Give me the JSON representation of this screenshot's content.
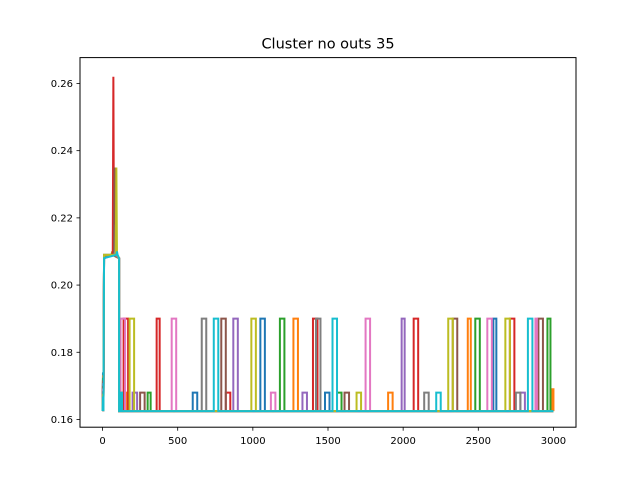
{
  "chart_data": {
    "type": "line",
    "title": "Cluster no outs 35",
    "xlabel": "",
    "ylabel": "",
    "xlim": [
      -150,
      3150
    ],
    "ylim": [
      0.1577,
      0.2677
    ],
    "x_ticks": [
      0,
      500,
      1000,
      1500,
      2000,
      2500,
      3000
    ],
    "x_tick_labels": [
      "0",
      "500",
      "1000",
      "1500",
      "2000",
      "2500",
      "3000"
    ],
    "y_ticks": [
      0.16,
      0.18,
      0.2,
      0.22,
      0.24,
      0.26
    ],
    "y_tick_labels": [
      "0.16",
      "0.18",
      "0.20",
      "0.22",
      "0.24",
      "0.26"
    ],
    "grid": false,
    "legend": "none",
    "baseline": 0.1625,
    "warmup": {
      "start": 0,
      "rise": 10,
      "end": 110,
      "plateau": 0.208
    },
    "series": [
      {
        "color": "#1f77b4",
        "spike_peak": 0.209,
        "spikes": [
          [
            600,
            630,
            0.168
          ],
          [
            1050,
            1080,
            0.19
          ],
          [
            1480,
            1510,
            0.168
          ],
          [
            2600,
            2620,
            0.19
          ]
        ]
      },
      {
        "color": "#ff7f0e",
        "spike_peak": 0.21,
        "spikes": [
          [
            130,
            160,
            0.168
          ],
          [
            1270,
            1300,
            0.19
          ],
          [
            1900,
            1930,
            0.168
          ],
          [
            2430,
            2450,
            0.19
          ],
          [
            2990,
            3000,
            0.169
          ]
        ]
      },
      {
        "color": "#2ca02c",
        "spike_peak": 0.21,
        "spikes": [
          [
            300,
            320,
            0.168
          ],
          [
            1180,
            1210,
            0.19
          ],
          [
            1560,
            1590,
            0.168
          ],
          [
            2480,
            2510,
            0.19
          ],
          [
            2960,
            2980,
            0.19
          ]
        ]
      },
      {
        "color": "#d62728",
        "spike_peak": 0.262,
        "spikes": [
          [
            140,
            170,
            0.19
          ],
          [
            360,
            380,
            0.19
          ],
          [
            820,
            850,
            0.168
          ],
          [
            1400,
            1430,
            0.19
          ],
          [
            2070,
            2100,
            0.19
          ],
          [
            2710,
            2740,
            0.19
          ]
        ]
      },
      {
        "color": "#9467bd",
        "spike_peak": 0.209,
        "spikes": [
          [
            200,
            230,
            0.168
          ],
          [
            870,
            900,
            0.19
          ],
          [
            1330,
            1360,
            0.168
          ],
          [
            1990,
            2010,
            0.19
          ],
          [
            2780,
            2810,
            0.168
          ]
        ]
      },
      {
        "color": "#8c564b",
        "spike_peak": 0.235,
        "spikes": [
          [
            250,
            280,
            0.168
          ],
          [
            790,
            820,
            0.19
          ],
          [
            1610,
            1640,
            0.168
          ],
          [
            2330,
            2360,
            0.19
          ],
          [
            2900,
            2930,
            0.19
          ]
        ]
      },
      {
        "color": "#e377c2",
        "spike_peak": 0.21,
        "spikes": [
          [
            120,
            150,
            0.19
          ],
          [
            460,
            490,
            0.19
          ],
          [
            1120,
            1150,
            0.168
          ],
          [
            1750,
            1780,
            0.19
          ],
          [
            2560,
            2590,
            0.19
          ],
          [
            2880,
            2890,
            0.19
          ]
        ]
      },
      {
        "color": "#7f7f7f",
        "spike_peak": 0.218,
        "spikes": [
          [
            660,
            690,
            0.19
          ],
          [
            1420,
            1450,
            0.19
          ],
          [
            2140,
            2170,
            0.168
          ],
          [
            2750,
            2780,
            0.168
          ]
        ]
      },
      {
        "color": "#bcbd22",
        "spike_peak": 0.235,
        "spikes": [
          [
            180,
            210,
            0.19
          ],
          [
            990,
            1020,
            0.19
          ],
          [
            1690,
            1720,
            0.168
          ],
          [
            2300,
            2330,
            0.19
          ],
          [
            2680,
            2710,
            0.19
          ]
        ]
      },
      {
        "color": "#17becf",
        "spike_peak": 0.21,
        "spikes": [
          [
            120,
            130,
            0.168
          ],
          [
            740,
            770,
            0.19
          ],
          [
            1530,
            1560,
            0.19
          ],
          [
            2220,
            2250,
            0.168
          ],
          [
            2830,
            2860,
            0.19
          ]
        ]
      }
    ]
  }
}
